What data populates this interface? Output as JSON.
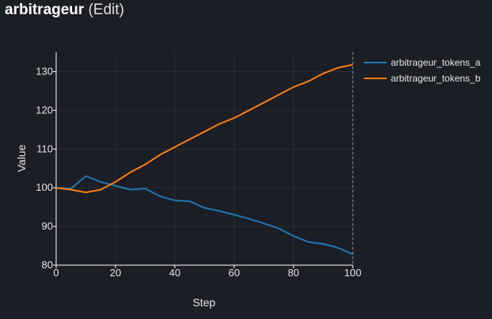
{
  "header": {
    "title": "arbitrageur",
    "edit_label": "(Edit)"
  },
  "colors": {
    "background": "#1b1e25",
    "grid": "#2a2d35",
    "series_a": "#1f77b4",
    "series_b": "#ff7f0e",
    "hover_line": "#9a9a9a"
  },
  "chart_data": {
    "type": "line",
    "title": "",
    "xlabel": "Step",
    "ylabel": "Value",
    "xlim": [
      0,
      100
    ],
    "ylim": [
      80,
      135
    ],
    "xticks": [
      0,
      20,
      40,
      60,
      80,
      100
    ],
    "yticks": [
      80,
      90,
      100,
      110,
      120,
      130
    ],
    "grid": true,
    "legend_position": "top-right",
    "hover_x": 100,
    "x": [
      0,
      5,
      10,
      15,
      20,
      25,
      30,
      35,
      40,
      45,
      50,
      55,
      60,
      65,
      70,
      75,
      80,
      85,
      90,
      95,
      100
    ],
    "series": [
      {
        "name": "arbitrageur_tokens_a",
        "color": "#1f77b4",
        "values": [
          100,
          99.8,
          103,
          101.5,
          100.5,
          99.5,
          99.8,
          97.8,
          96.7,
          96.5,
          94.8,
          94,
          93,
          92,
          90.8,
          89.5,
          87.5,
          86,
          85.5,
          84.5,
          82.8
        ]
      },
      {
        "name": "arbitrageur_tokens_b",
        "color": "#ff7f0e",
        "values": [
          100,
          99.5,
          98.8,
          99.5,
          101.5,
          104,
          106,
          108.5,
          110.5,
          112.5,
          114.5,
          116.5,
          118,
          120,
          122,
          124,
          126,
          127.5,
          129.5,
          131,
          131.8
        ]
      }
    ]
  }
}
